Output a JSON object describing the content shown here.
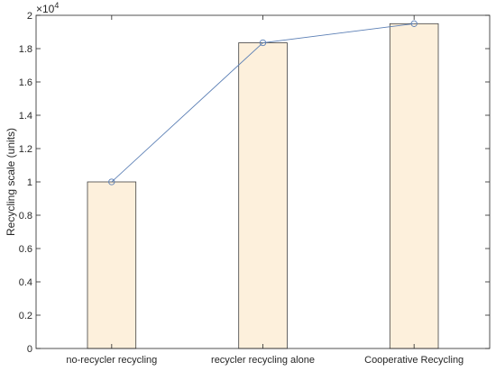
{
  "chart_data": {
    "type": "bar",
    "title": "",
    "xlabel": "",
    "ylabel": "Recycling scale (units)",
    "categories": [
      "no-recycler recycling",
      "recycler recycling alone",
      "Cooperative Recycling"
    ],
    "series": [
      {
        "type": "bar",
        "values": [
          10000,
          18350,
          19500
        ],
        "fill": "#fdf0dc",
        "stroke": "#404040"
      },
      {
        "type": "line",
        "marker": "circle",
        "values": [
          10000,
          18350,
          19500
        ],
        "color": "#5b7fb5"
      }
    ],
    "ylim": [
      0,
      20000
    ],
    "y_exponent_label": "×10⁴",
    "y_ticks": [
      0,
      2000,
      4000,
      6000,
      8000,
      10000,
      12000,
      14000,
      16000,
      18000,
      20000
    ],
    "y_tick_labels": [
      "0",
      "0.2",
      "0.4",
      "0.6",
      "0.8",
      "1",
      "1.2",
      "1.4",
      "1.6",
      "1.8",
      "2"
    ],
    "grid": false,
    "legend": false
  }
}
